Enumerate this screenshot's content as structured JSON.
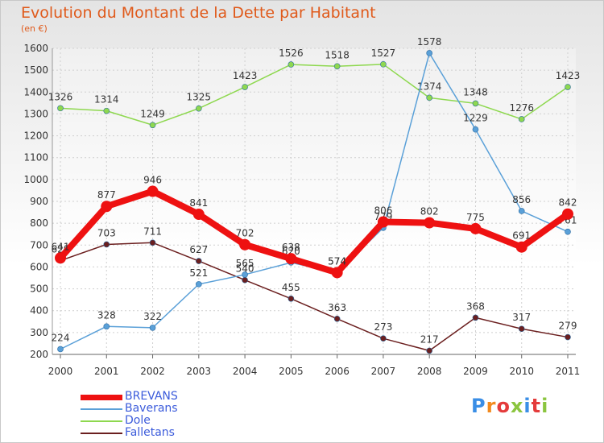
{
  "header": {
    "title": "Evolution du Montant de la Dette par Habitant",
    "unit": "(en €)"
  },
  "logo": {
    "text": "Proxiti",
    "colors": [
      "#3a8ee6",
      "#f28a1e",
      "#e43b3b",
      "#8bc53f",
      "#3a8ee6",
      "#e43b3b",
      "#8bc53f"
    ]
  },
  "chart_data": {
    "type": "line",
    "title": "Evolution du Montant de la Dette par Habitant",
    "ylabel": "(en €)",
    "xlabel": "",
    "categories": [
      "2000",
      "2001",
      "2002",
      "2003",
      "2004",
      "2005",
      "2006",
      "2007",
      "2008",
      "2009",
      "2010",
      "2011"
    ],
    "ylim": [
      200,
      1600
    ],
    "yticks": [
      "200",
      "300",
      "400",
      "500",
      "600",
      "700",
      "800",
      "900",
      "1000",
      "1100",
      "1200",
      "1300",
      "1400",
      "1500",
      "1600"
    ],
    "grid": true,
    "legend": "bottom-left",
    "series": [
      {
        "name": "BREVANS",
        "color": "#ee1111",
        "values": [
          641,
          877,
          946,
          841,
          702,
          638,
          574,
          806,
          802,
          775,
          691,
          842
        ]
      },
      {
        "name": "Baverans",
        "color": "#5aa0d8",
        "values": [
          224,
          328,
          322,
          521,
          565,
          620,
          574,
          779,
          1578,
          1229,
          856,
          761
        ]
      },
      {
        "name": "Dole",
        "color": "#8ed84f",
        "values": [
          1326,
          1314,
          1249,
          1325,
          1423,
          1526,
          1518,
          1527,
          1374,
          1348,
          1276,
          1423
        ]
      },
      {
        "name": "Falletans",
        "color": "#6b1f1f",
        "values": [
          629,
          703,
          711,
          627,
          540,
          455,
          363,
          273,
          217,
          368,
          317,
          279
        ]
      }
    ]
  }
}
